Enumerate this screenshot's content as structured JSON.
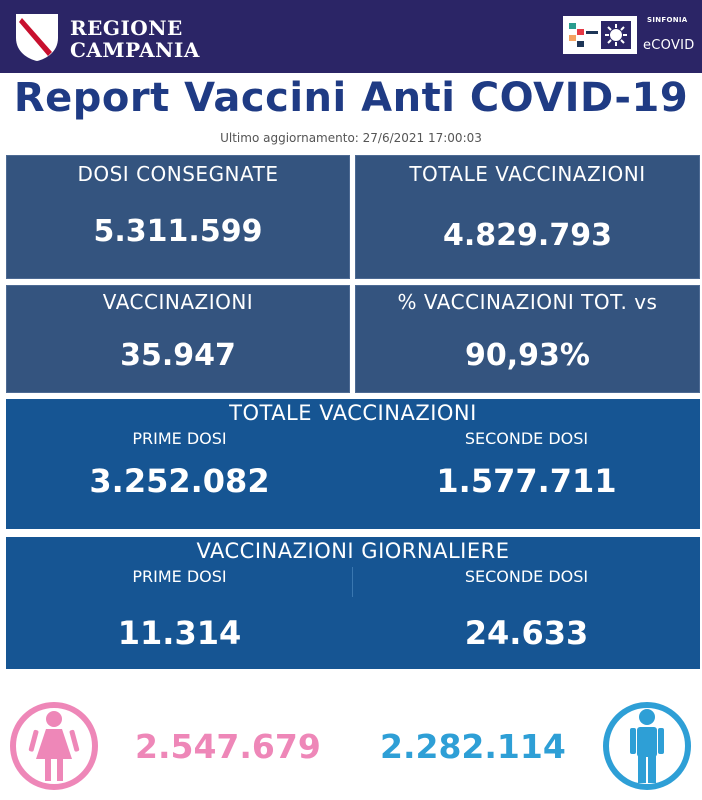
{
  "header": {
    "region_name_line1": "REGIONE",
    "region_name_line2": "CAMPANIA",
    "sinfonia_label": "SINFONIA",
    "ecovid_label": "eCOVID"
  },
  "title": "Report Vaccini Anti COVID-19",
  "subtitle": "Ultimo aggiornamento: 27/6/2021 17:00:03",
  "cards": [
    {
      "label": "DOSI  CONSEGNATE",
      "value": "5.311.599"
    },
    {
      "label": "TOTALE VACCINAZIONI",
      "value": "4.829.793"
    },
    {
      "label": "VACCINAZIONI",
      "value": "35.947"
    },
    {
      "label": "% VACCINAZIONI TOT. vs",
      "value": "90,93%"
    }
  ],
  "totale_panel": {
    "title": "TOTALE VACCINAZIONI",
    "prime_label": "PRIME DOSI",
    "prime_value": "3.252.082",
    "seconde_label": "SECONDE DOSI",
    "seconde_value": "1.577.711"
  },
  "giornaliere_panel": {
    "title": "VACCINAZIONI GIORNALIERE",
    "prime_label": "PRIME DOSI",
    "prime_value": "11.314",
    "seconde_label": "SECONDE DOSI",
    "seconde_value": "24.633"
  },
  "gender": {
    "female_value": "2.547.679",
    "male_value": "2.282.114",
    "female_icon": "female-icon",
    "male_icon": "male-icon"
  },
  "colors": {
    "header_bg": "#2b2566",
    "title": "#1f3b84",
    "card_bg": "#34547f",
    "panel_bg": "#165593",
    "female": "#ee87b8",
    "male": "#2e9fd6"
  }
}
